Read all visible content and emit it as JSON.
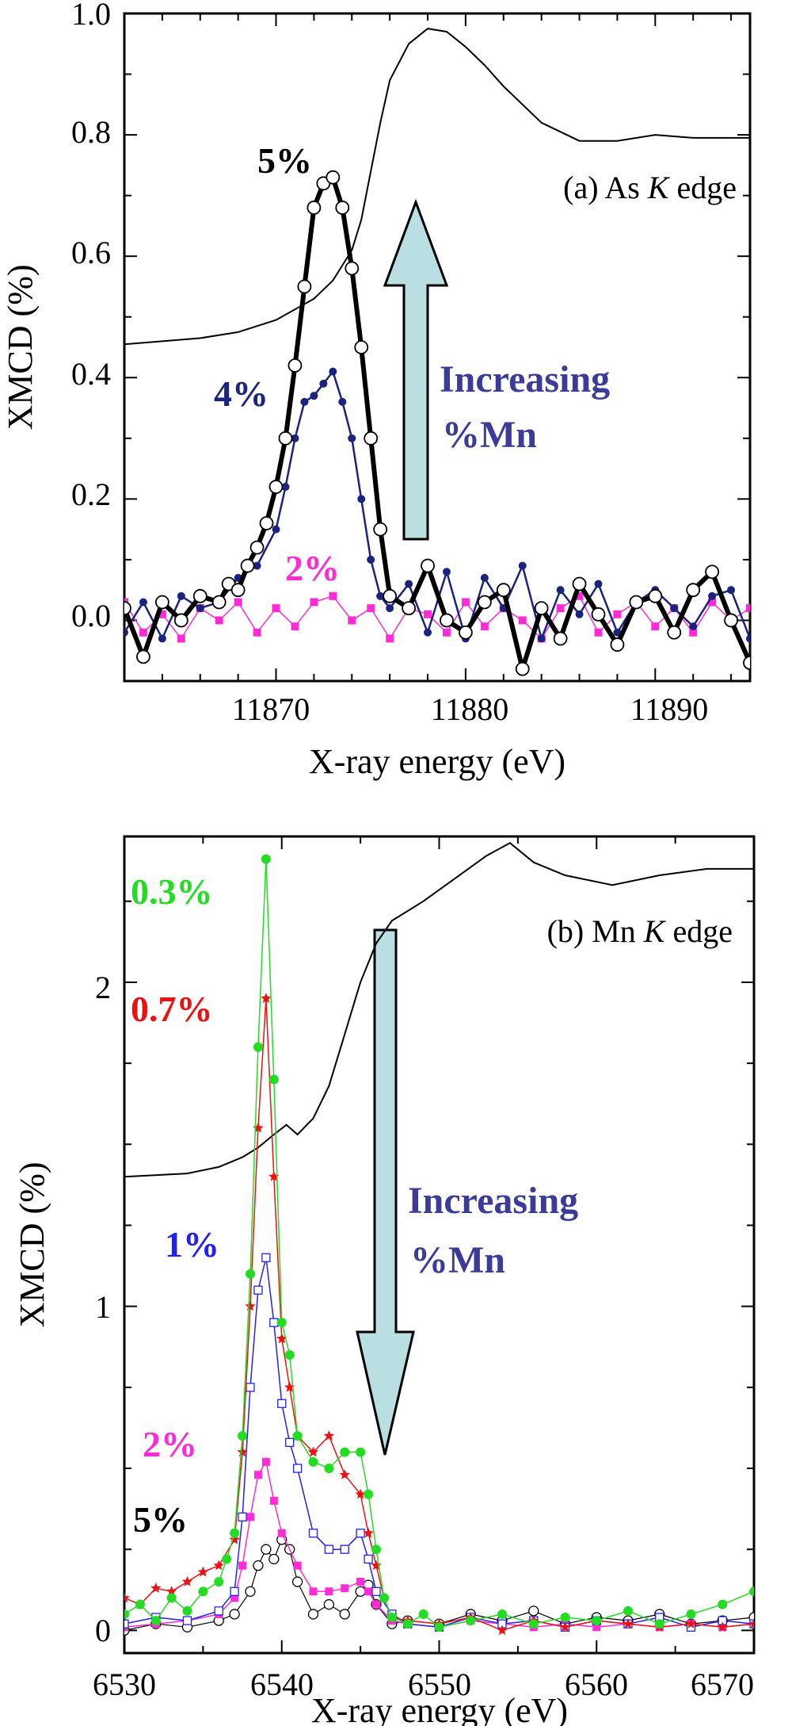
{
  "colors": {
    "black": "#000000",
    "navy": "#1a237e",
    "magenta": "#ff2bd6",
    "green": "#22dd22",
    "red": "#ee1111",
    "blue": "#2222ee",
    "annotation": "#3b3b9a",
    "arrow_fill": "#b9dfe2"
  },
  "chart_data": [
    {
      "type": "line",
      "panel": "a",
      "title_prefix": "(a) As ",
      "title_italic": "K",
      "title_suffix": " edge",
      "xlabel": "X-ray energy  (eV)",
      "ylabel": "XMCD (%)",
      "xlim": [
        11862,
        11895
      ],
      "ylim": [
        -0.1,
        1.0
      ],
      "xticks": [
        11870,
        11880,
        11890
      ],
      "xtick_labels": [
        "11870",
        "11880",
        "11890"
      ],
      "yticks": [
        0.0,
        0.2,
        0.4,
        0.6,
        0.8,
        1.0
      ],
      "ytick_labels": [
        "0.0",
        "0.2",
        "0.4",
        "0.6",
        "0.8",
        "1.0"
      ],
      "annotation": [
        "Increasing",
        "%Mn"
      ],
      "arrow_direction": "up",
      "absorption_curve": {
        "x": [
          11862,
          11866,
          11868,
          11870,
          11872,
          11873,
          11874,
          11874.5,
          11875,
          11875.5,
          11876,
          11877,
          11878,
          11879,
          11880,
          11881,
          11882,
          11884,
          11886,
          11888,
          11890,
          11892,
          11895
        ],
        "y": [
          0.455,
          0.465,
          0.475,
          0.495,
          0.53,
          0.56,
          0.61,
          0.66,
          0.74,
          0.82,
          0.89,
          0.95,
          0.975,
          0.97,
          0.945,
          0.915,
          0.88,
          0.82,
          0.79,
          0.79,
          0.8,
          0.795,
          0.795
        ]
      },
      "series": [
        {
          "name": "5%",
          "label": "5%",
          "color": "black",
          "marker": "open-circle",
          "x": [
            11862,
            11863,
            11864,
            11865,
            11866,
            11867,
            11867.5,
            11868,
            11868.5,
            11869,
            11869.5,
            11870,
            11870.5,
            11871,
            11871.5,
            11872,
            11872.5,
            11873,
            11873.5,
            11874,
            11874.5,
            11875,
            11875.5,
            11876,
            11877,
            11878,
            11879,
            11880,
            11881,
            11882,
            11883,
            11884,
            11885,
            11886,
            11887,
            11888,
            11889,
            11890,
            11891,
            11892,
            11893,
            11894,
            11895
          ],
          "y": [
            0.02,
            -0.06,
            0.03,
            0.0,
            0.04,
            0.03,
            0.06,
            0.05,
            0.09,
            0.12,
            0.16,
            0.22,
            0.3,
            0.42,
            0.55,
            0.68,
            0.72,
            0.73,
            0.68,
            0.58,
            0.45,
            0.3,
            0.15,
            0.04,
            0.02,
            0.09,
            0.0,
            -0.02,
            0.03,
            0.05,
            -0.08,
            0.02,
            -0.03,
            0.06,
            0.01,
            -0.04,
            0.03,
            0.04,
            -0.02,
            0.05,
            0.08,
            0.0,
            -0.07
          ]
        },
        {
          "name": "4%",
          "label": "4%",
          "color": "navy",
          "marker": "filled-circle",
          "x": [
            11862,
            11863,
            11864,
            11865,
            11866,
            11867,
            11868,
            11869,
            11870,
            11870.5,
            11871,
            11871.5,
            11872,
            11872.5,
            11873,
            11873.5,
            11874,
            11874.5,
            11875,
            11875.5,
            11876,
            11877,
            11878,
            11879,
            11880,
            11881,
            11882,
            11883,
            11884,
            11885,
            11886,
            11887,
            11888,
            11889,
            11890,
            11891,
            11892,
            11893,
            11894,
            11895
          ],
          "y": [
            -0.02,
            0.03,
            -0.03,
            0.04,
            0.02,
            0.03,
            0.07,
            0.09,
            0.15,
            0.22,
            0.3,
            0.36,
            0.37,
            0.39,
            0.41,
            0.36,
            0.3,
            0.2,
            0.1,
            0.04,
            0.02,
            0.06,
            -0.02,
            0.08,
            -0.03,
            0.07,
            0.02,
            0.09,
            -0.03,
            0.05,
            0.01,
            0.06,
            -0.02,
            0.03,
            0.05,
            0.02,
            -0.01,
            0.04,
            0.05,
            -0.03
          ]
        },
        {
          "name": "2%",
          "label": "2%",
          "color": "magenta",
          "marker": "filled-square",
          "x": [
            11862,
            11863,
            11864,
            11865,
            11866,
            11867,
            11868,
            11869,
            11870,
            11871,
            11872,
            11873,
            11874,
            11875,
            11876,
            11877,
            11878,
            11879,
            11880,
            11881,
            11882,
            11883,
            11884,
            11885,
            11886,
            11887,
            11888,
            11889,
            11890,
            11891,
            11892,
            11893,
            11894,
            11895
          ],
          "y": [
            0.03,
            -0.02,
            0.01,
            -0.03,
            0.02,
            0.0,
            0.03,
            -0.02,
            0.02,
            -0.01,
            0.03,
            0.04,
            0.0,
            0.02,
            -0.03,
            0.02,
            0.01,
            -0.02,
            0.03,
            -0.01,
            0.02,
            0.0,
            -0.03,
            0.02,
            0.04,
            -0.02,
            0.01,
            0.03,
            -0.01,
            0.02,
            -0.02,
            0.03,
            0.0,
            0.02
          ]
        }
      ]
    },
    {
      "type": "line",
      "panel": "b",
      "title_prefix": "(b) Mn ",
      "title_italic": "K",
      "title_suffix": " edge",
      "xlabel": "X-ray energy (eV)",
      "ylabel": "XMCD (%)",
      "xlim": [
        6530,
        6570
      ],
      "ylim": [
        -0.07,
        2.45
      ],
      "xticks": [
        6530,
        6540,
        6550,
        6560,
        6570
      ],
      "xtick_labels": [
        "6530",
        "6540",
        "6550",
        "6560",
        "6570"
      ],
      "yticks": [
        0,
        1,
        2
      ],
      "ytick_labels": [
        "0",
        "1",
        "2"
      ],
      "annotation": [
        "Increasing",
        "%Mn"
      ],
      "arrow_direction": "down",
      "absorption_curve": {
        "x": [
          6530,
          6534,
          6536,
          6537.5,
          6538.5,
          6539.5,
          6540.3,
          6541,
          6542,
          6543,
          6544,
          6545,
          6546,
          6547,
          6549,
          6551,
          6553,
          6554.5,
          6556,
          6558,
          6561,
          6564,
          6567,
          6570
        ],
        "y": [
          1.4,
          1.41,
          1.43,
          1.46,
          1.49,
          1.53,
          1.56,
          1.53,
          1.58,
          1.68,
          1.84,
          2.0,
          2.12,
          2.19,
          2.25,
          2.32,
          2.39,
          2.43,
          2.37,
          2.33,
          2.3,
          2.33,
          2.35,
          2.35
        ]
      },
      "series": [
        {
          "name": "0.3%",
          "label": "0.3%",
          "color": "green",
          "marker": "filled-circle",
          "x": [
            6530,
            6531,
            6532,
            6533,
            6534,
            6535,
            6536,
            6536.5,
            6537,
            6537.5,
            6538,
            6538.5,
            6539,
            6539.5,
            6540,
            6540.5,
            6541,
            6542,
            6543,
            6544,
            6545,
            6545.5,
            6546,
            6546.5,
            6547,
            6548,
            6549,
            6550,
            6552,
            6554,
            6556,
            6558,
            6560,
            6562,
            6564,
            6566,
            6568,
            6570
          ],
          "y": [
            0.05,
            0.08,
            0.03,
            0.1,
            0.06,
            0.12,
            0.15,
            0.22,
            0.3,
            0.6,
            1.1,
            1.8,
            2.38,
            1.7,
            0.95,
            0.85,
            0.6,
            0.52,
            0.5,
            0.55,
            0.55,
            0.42,
            0.25,
            0.1,
            0.04,
            0.02,
            0.05,
            0.01,
            0.03,
            0.05,
            0.02,
            0.04,
            0.03,
            0.06,
            0.02,
            0.05,
            0.08,
            0.12
          ]
        },
        {
          "name": "0.7%",
          "label": "0.7%",
          "color": "red",
          "marker": "filled-star",
          "x": [
            6530,
            6531,
            6532,
            6533,
            6534,
            6535,
            6536,
            6537,
            6537.5,
            6538,
            6538.5,
            6539,
            6539.5,
            6540,
            6540.5,
            6541,
            6542,
            6543,
            6544,
            6545,
            6545.5,
            6546,
            6546.5,
            6547,
            6548,
            6550,
            6552,
            6554,
            6556,
            6558,
            6560,
            6562,
            6564,
            6566,
            6568,
            6570
          ],
          "y": [
            0.1,
            0.08,
            0.13,
            0.12,
            0.15,
            0.18,
            0.2,
            0.28,
            0.55,
            1.0,
            1.55,
            1.95,
            1.4,
            0.9,
            0.75,
            0.6,
            0.55,
            0.6,
            0.48,
            0.42,
            0.3,
            0.2,
            0.1,
            0.04,
            0.03,
            0.02,
            0.04,
            0.0,
            0.03,
            0.01,
            0.03,
            0.02,
            0.01,
            0.02,
            0.01,
            0.02
          ]
        },
        {
          "name": "1%",
          "label": "1%",
          "color": "blue",
          "marker": "open-square",
          "x": [
            6530,
            6532,
            6534,
            6536,
            6537,
            6537.5,
            6538,
            6538.5,
            6539,
            6539.5,
            6540,
            6540.5,
            6541,
            6542,
            6543,
            6544,
            6545,
            6545.5,
            6546,
            6547,
            6548,
            6550,
            6552,
            6554,
            6556,
            6558,
            6560,
            6562,
            6564,
            6566,
            6568,
            6570
          ],
          "y": [
            0.02,
            0.04,
            0.03,
            0.06,
            0.12,
            0.35,
            0.75,
            1.05,
            1.15,
            0.95,
            0.7,
            0.58,
            0.5,
            0.3,
            0.25,
            0.25,
            0.3,
            0.22,
            0.12,
            0.05,
            0.02,
            0.01,
            0.04,
            0.02,
            0.03,
            0.01,
            0.03,
            0.02,
            0.04,
            0.01,
            0.03,
            0.02
          ]
        },
        {
          "name": "2%",
          "label": "2%",
          "color": "magenta",
          "marker": "filled-square",
          "x": [
            6530,
            6532,
            6534,
            6536,
            6537,
            6537.5,
            6538,
            6538.5,
            6539,
            6539.5,
            6540,
            6541,
            6542,
            6543,
            6544,
            6545,
            6545.5,
            6546,
            6547,
            6548,
            6550,
            6552,
            6554,
            6556,
            6558,
            6560,
            6562,
            6564,
            6566,
            6568,
            6570
          ],
          "y": [
            0.01,
            0.02,
            0.03,
            0.05,
            0.1,
            0.2,
            0.35,
            0.48,
            0.52,
            0.4,
            0.3,
            0.2,
            0.12,
            0.12,
            0.13,
            0.15,
            0.12,
            0.08,
            0.03,
            0.02,
            0.01,
            0.03,
            0.02,
            0.01,
            0.02,
            0.01,
            0.02,
            0.01,
            0.02,
            0.01,
            0.02
          ]
        },
        {
          "name": "5%",
          "label": "5%",
          "color": "black",
          "marker": "open-circle",
          "x": [
            6530,
            6532,
            6534,
            6536,
            6537,
            6538,
            6538.5,
            6539,
            6539.5,
            6540,
            6540.5,
            6541,
            6542,
            6543,
            6544,
            6545,
            6545.5,
            6546,
            6547,
            6548,
            6550,
            6552,
            6554,
            6556,
            6558,
            6560,
            6562,
            6564,
            6566,
            6568,
            6570
          ],
          "y": [
            0.0,
            0.02,
            0.01,
            0.03,
            0.05,
            0.12,
            0.2,
            0.25,
            0.22,
            0.28,
            0.25,
            0.15,
            0.05,
            0.08,
            0.05,
            0.12,
            0.14,
            0.08,
            0.02,
            0.03,
            0.02,
            0.05,
            0.03,
            0.06,
            0.02,
            0.04,
            0.03,
            0.05,
            0.02,
            0.03,
            0.04
          ]
        }
      ]
    }
  ]
}
